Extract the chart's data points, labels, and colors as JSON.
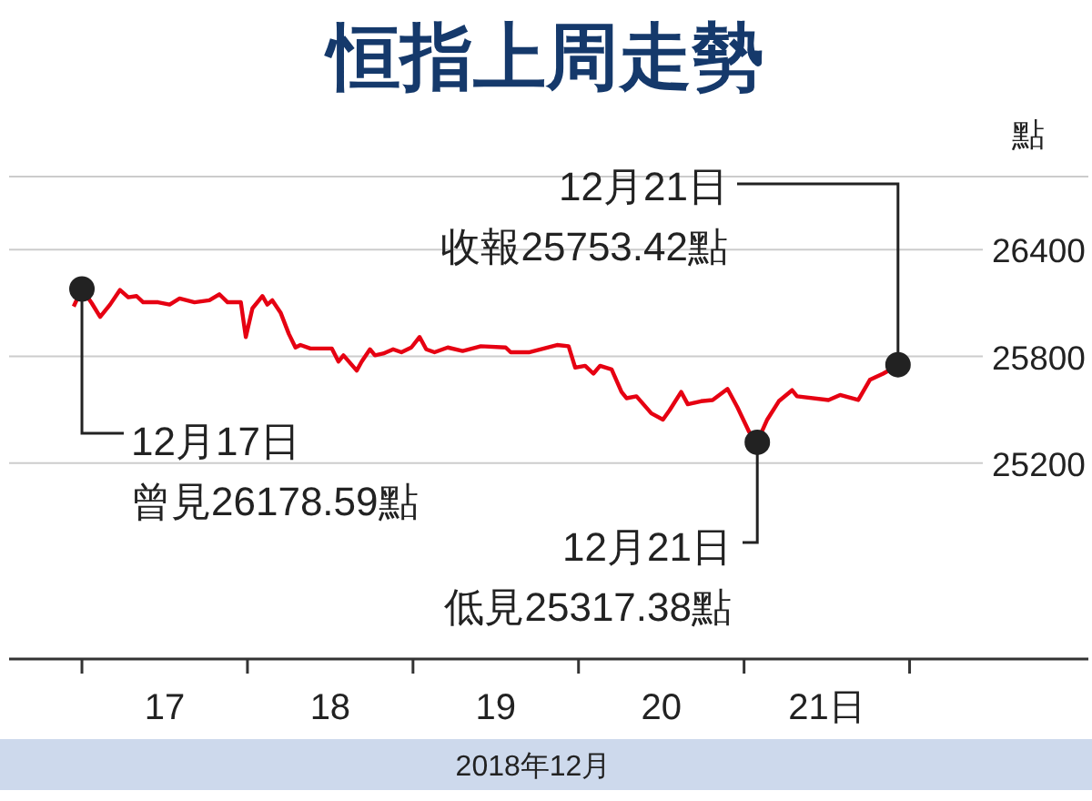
{
  "chart_data": {
    "type": "line",
    "title": "恒指上周走勢",
    "xlabel": "2018年12月",
    "ylabel": "點",
    "xlim": [
      16.56,
      23.08
    ],
    "xticks": [
      {
        "value": 17,
        "label": null
      },
      {
        "value": 17.5,
        "label": "17"
      },
      {
        "value": 18,
        "label": null
      },
      {
        "value": 18.5,
        "label": "18"
      },
      {
        "value": 19,
        "label": null
      },
      {
        "value": 19.5,
        "label": "19"
      },
      {
        "value": 20,
        "label": null
      },
      {
        "value": 20.5,
        "label": "20"
      },
      {
        "value": 21,
        "label": null
      },
      {
        "value": 21.5,
        "label": "21日"
      },
      {
        "value": 22,
        "label": null
      }
    ],
    "ylim": [
      24100,
      26810
    ],
    "yticks": [
      25200,
      25800,
      26400
    ],
    "grid": "y",
    "marker": "none",
    "line_style": "solid",
    "series": [
      {
        "color": "#e60012",
        "x": [
          16.95,
          17.0,
          17.06,
          17.11,
          17.17,
          17.23,
          17.28,
          17.33,
          17.37,
          17.46,
          17.53,
          17.59,
          17.68,
          17.77,
          17.83,
          17.88,
          17.96,
          17.99,
          18.03,
          18.07,
          18.09,
          18.12,
          18.15,
          18.2,
          18.25,
          18.29,
          18.32,
          18.38,
          18.51,
          18.55,
          18.58,
          18.66,
          18.69,
          18.74,
          18.77,
          18.82,
          18.88,
          18.93,
          18.99,
          19.04,
          19.08,
          19.13,
          19.21,
          19.3,
          19.41,
          19.56,
          19.59,
          19.7,
          19.87,
          19.94,
          19.98,
          20.04,
          20.09,
          20.13,
          20.2,
          20.26,
          20.29,
          20.35,
          20.44,
          20.51,
          20.55,
          20.62,
          20.66,
          20.74,
          20.81,
          20.9,
          20.96,
          21.03,
          21.08,
          21.14,
          21.21,
          21.29,
          21.32,
          21.51,
          21.58,
          21.69,
          21.76,
          21.84,
          21.93
        ],
        "values": [
          26080,
          26180,
          26098,
          26022,
          26091,
          26173,
          26132,
          26139,
          26104,
          26104,
          26091,
          26125,
          26104,
          26115,
          26149,
          26104,
          26104,
          25909,
          26070,
          26115,
          26139,
          26091,
          26115,
          26046,
          25926,
          25850,
          25864,
          25844,
          25844,
          25771,
          25806,
          25720,
          25771,
          25840,
          25806,
          25816,
          25840,
          25823,
          25850,
          25909,
          25840,
          25823,
          25850,
          25830,
          25857,
          25850,
          25823,
          25823,
          25864,
          25857,
          25737,
          25747,
          25703,
          25747,
          25727,
          25600,
          25565,
          25576,
          25480,
          25445,
          25497,
          25600,
          25531,
          25548,
          25555,
          25617,
          25514,
          25377,
          25320,
          25445,
          25548,
          25610,
          25576,
          25555,
          25583,
          25555,
          25668,
          25703,
          25750
        ]
      }
    ],
    "annotations": [
      {
        "text": "12月17日",
        "x": 17.0,
        "y": 26178.59
      },
      "曾見26178.59點",
      {
        "text": "12月21日",
        "x": 21.93,
        "y": 25753.42
      },
      "收報25753.42點",
      {
        "text": "12月21日",
        "x": 21.08,
        "y": 25317.38
      },
      "低見25317.38點"
    ]
  }
}
